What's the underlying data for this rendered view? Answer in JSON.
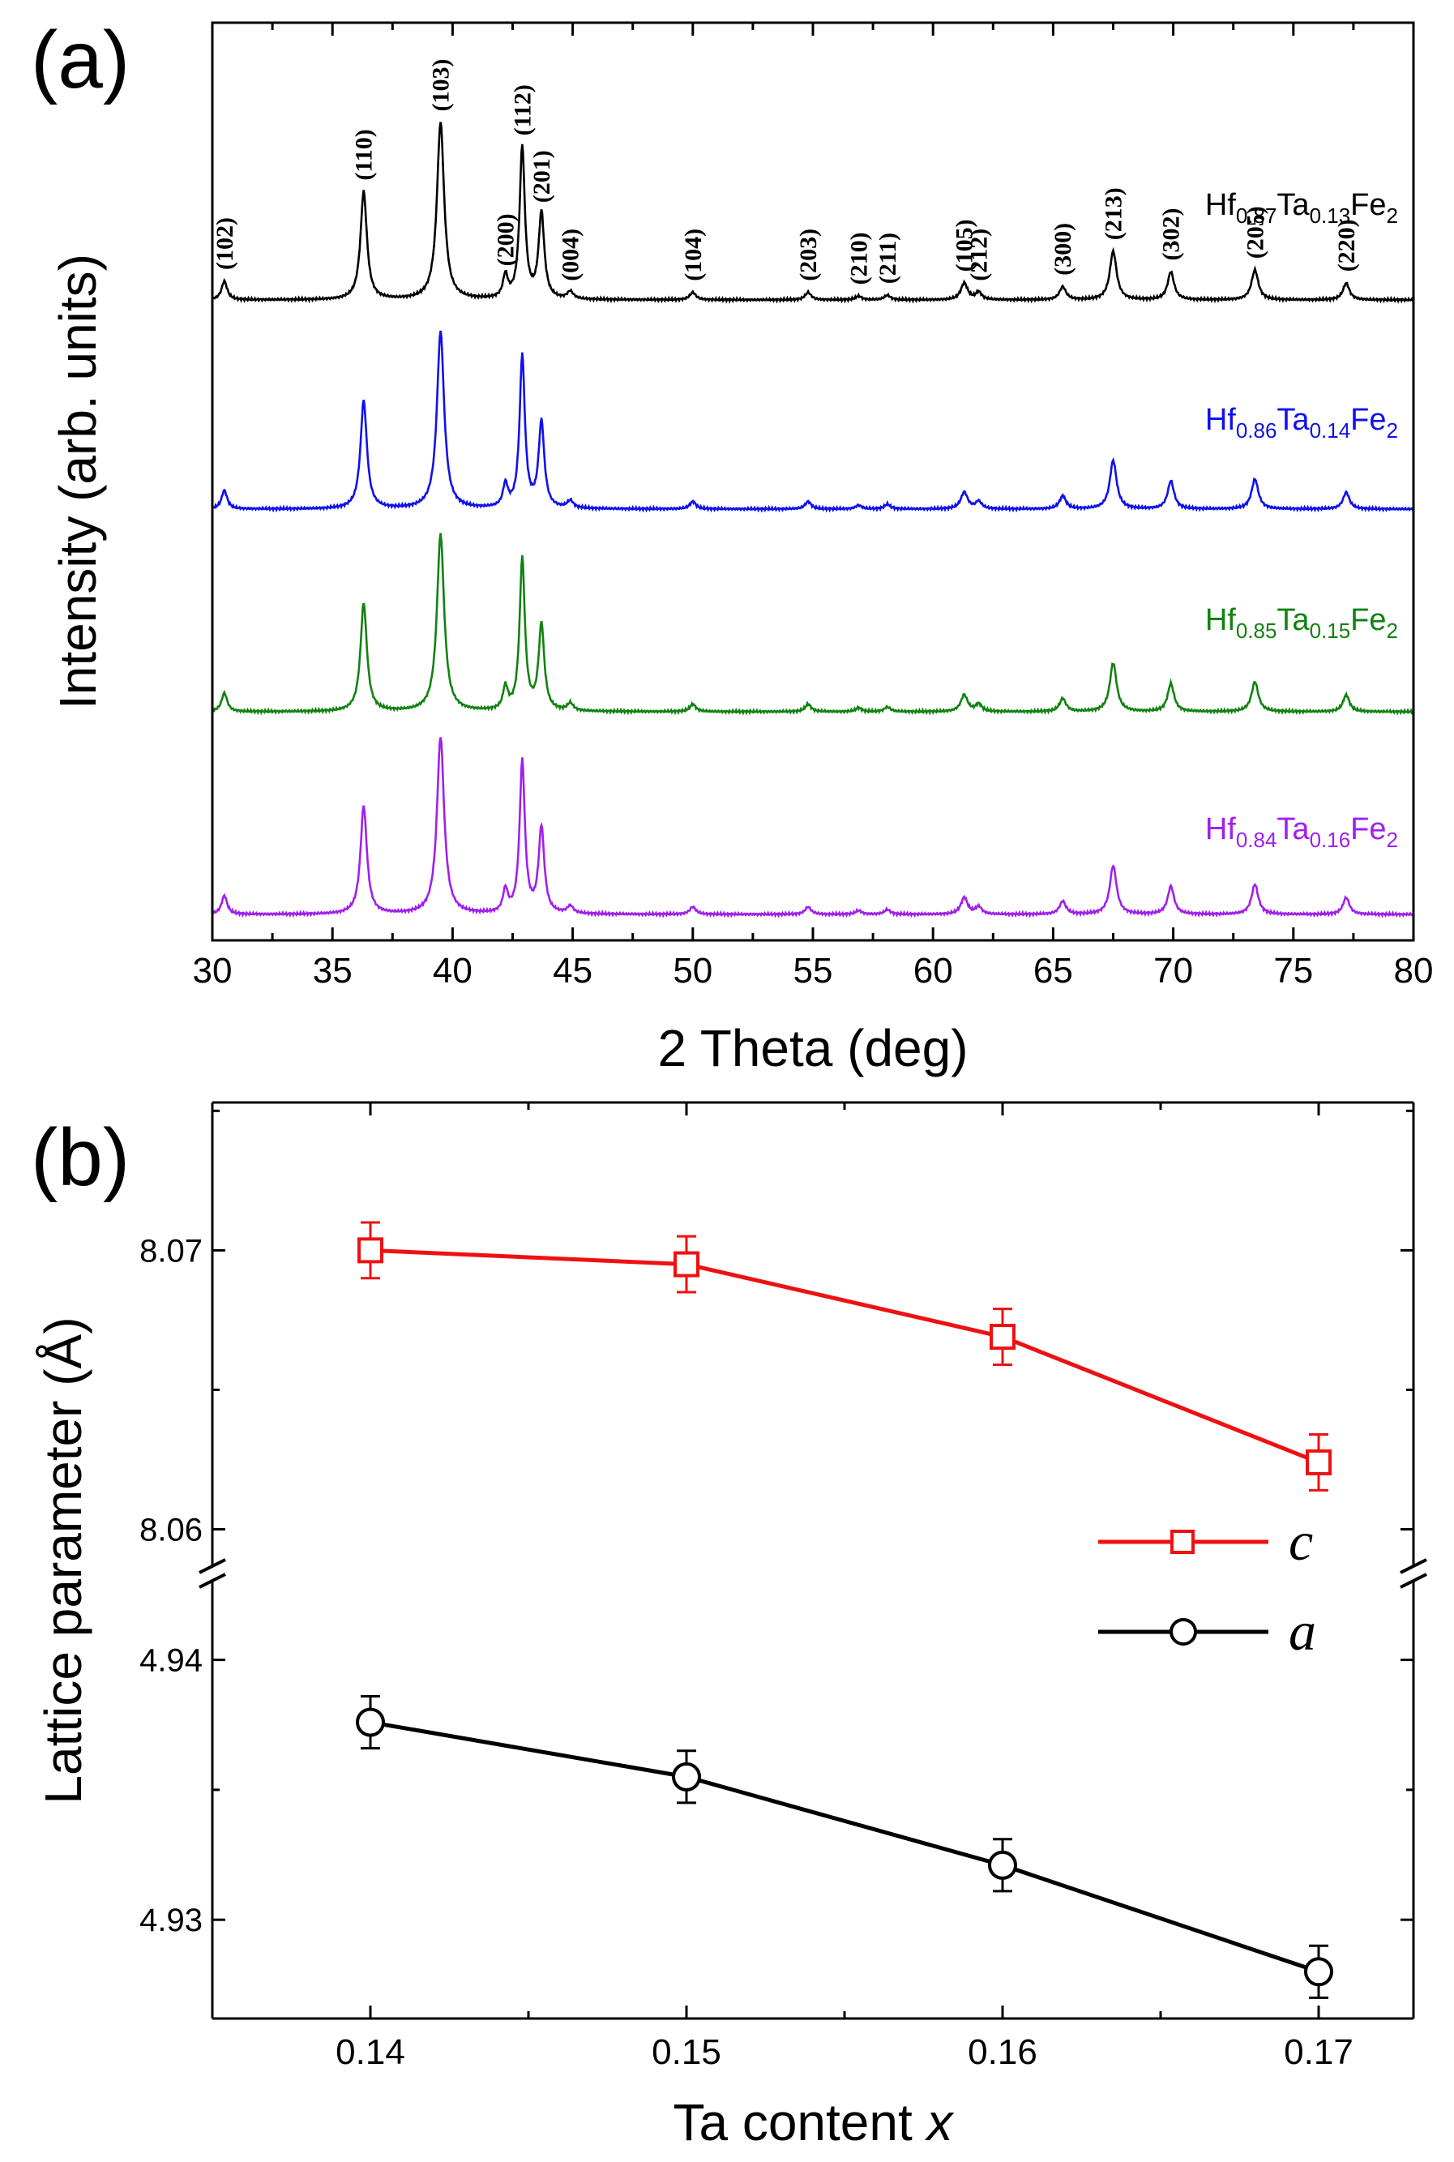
{
  "chart_data": [
    {
      "panel_label": "(a)",
      "type": "line",
      "xlabel": "2 Theta (deg)",
      "ylabel": "Intensity (arb. units)",
      "xlim": [
        30,
        80
      ],
      "xticks": [
        "30",
        "35",
        "40",
        "45",
        "50",
        "55",
        "60",
        "65",
        "70",
        "75",
        "80"
      ],
      "yticks": [],
      "peaks": [
        {
          "x": 30.5,
          "label": "(102)",
          "rel": 0.1,
          "w": 0.14
        },
        {
          "x": 36.3,
          "label": "(110)",
          "rel": 0.58,
          "w": 0.16
        },
        {
          "x": 39.5,
          "label": "(103)",
          "rel": 0.95,
          "w": 0.18
        },
        {
          "x": 42.2,
          "label": "(200)",
          "rel": 0.12,
          "w": 0.12
        },
        {
          "x": 42.9,
          "label": "(112)",
          "rel": 0.82,
          "w": 0.13
        },
        {
          "x": 43.7,
          "label": "(201)",
          "rel": 0.46,
          "w": 0.14
        },
        {
          "x": 44.9,
          "label": "(004)",
          "rel": 0.04,
          "w": 0.15
        },
        {
          "x": 50.0,
          "label": "(104)",
          "rel": 0.04,
          "w": 0.15
        },
        {
          "x": 54.8,
          "label": "(203)",
          "rel": 0.04,
          "w": 0.15
        },
        {
          "x": 56.9,
          "label": "(210)",
          "rel": 0.02,
          "w": 0.15
        },
        {
          "x": 58.1,
          "label": "(211)",
          "rel": 0.025,
          "w": 0.15
        },
        {
          "x": 61.3,
          "label": "(105)",
          "rel": 0.09,
          "w": 0.17
        },
        {
          "x": 61.9,
          "label": "(212)",
          "rel": 0.04,
          "w": 0.15
        },
        {
          "x": 65.4,
          "label": "(300)",
          "rel": 0.07,
          "w": 0.16
        },
        {
          "x": 67.5,
          "label": "(213)",
          "rel": 0.26,
          "w": 0.17
        },
        {
          "x": 69.9,
          "label": "(302)",
          "rel": 0.15,
          "w": 0.16
        },
        {
          "x": 73.4,
          "label": "(205)",
          "rel": 0.16,
          "w": 0.17
        },
        {
          "x": 77.2,
          "label": "(220)",
          "rel": 0.09,
          "w": 0.16
        }
      ],
      "series": [
        {
          "name": "Hf0.87Ta0.13Fe2",
          "base": "Hf",
          "sub1": "0.87",
          "mid": "Ta",
          "sub2": "0.13",
          "tail": "Fe",
          "sub3": "2",
          "color": "#000000",
          "offset": 3
        },
        {
          "name": "Hf0.86Ta0.14Fe2",
          "base": "Hf",
          "sub1": "0.86",
          "mid": "Ta",
          "sub2": "0.14",
          "tail": "Fe",
          "sub3": "2",
          "color": "#1010ee",
          "offset": 2
        },
        {
          "name": "Hf0.85Ta0.15Fe2",
          "base": "Hf",
          "sub1": "0.85",
          "mid": "Ta",
          "sub2": "0.15",
          "tail": "Fe",
          "sub3": "2",
          "color": "#128212",
          "offset": 1
        },
        {
          "name": "Hf0.84Ta0.16Fe2",
          "base": "Hf",
          "sub1": "0.84",
          "mid": "Ta",
          "sub2": "0.16",
          "tail": "Fe",
          "sub3": "2",
          "color": "#a020ee",
          "offset": 0
        }
      ]
    },
    {
      "panel_label": "(b)",
      "type": "line",
      "xlabel_main": "Ta content ",
      "xlabel_var": "x",
      "ylabel": "Lattice parameter (Å)",
      "xlim": [
        0.135,
        0.173
      ],
      "xticks": [
        "0.14",
        "0.15",
        "0.16",
        "0.17"
      ],
      "upper_ylim": [
        8.0583,
        8.0753
      ],
      "upper_yticks": [
        "8.06",
        "8.07"
      ],
      "lower_ylim": [
        4.9262,
        4.9432
      ],
      "lower_yticks": [
        "4.93",
        "4.94"
      ],
      "axis_break": true,
      "series": [
        {
          "name": "c",
          "marker": "square",
          "color": "#ee1111",
          "x": [
            0.14,
            0.15,
            0.16,
            0.17
          ],
          "y": [
            8.07,
            8.0695,
            8.0669,
            8.0624
          ],
          "err": [
            0.001,
            0.001,
            0.001,
            0.001
          ]
        },
        {
          "name": "a",
          "marker": "circle",
          "color": "#000000",
          "x": [
            0.14,
            0.15,
            0.16,
            0.17
          ],
          "y": [
            4.9376,
            4.9355,
            4.9321,
            4.928
          ],
          "err": [
            0.001,
            0.001,
            0.001,
            0.001
          ]
        }
      ]
    }
  ]
}
